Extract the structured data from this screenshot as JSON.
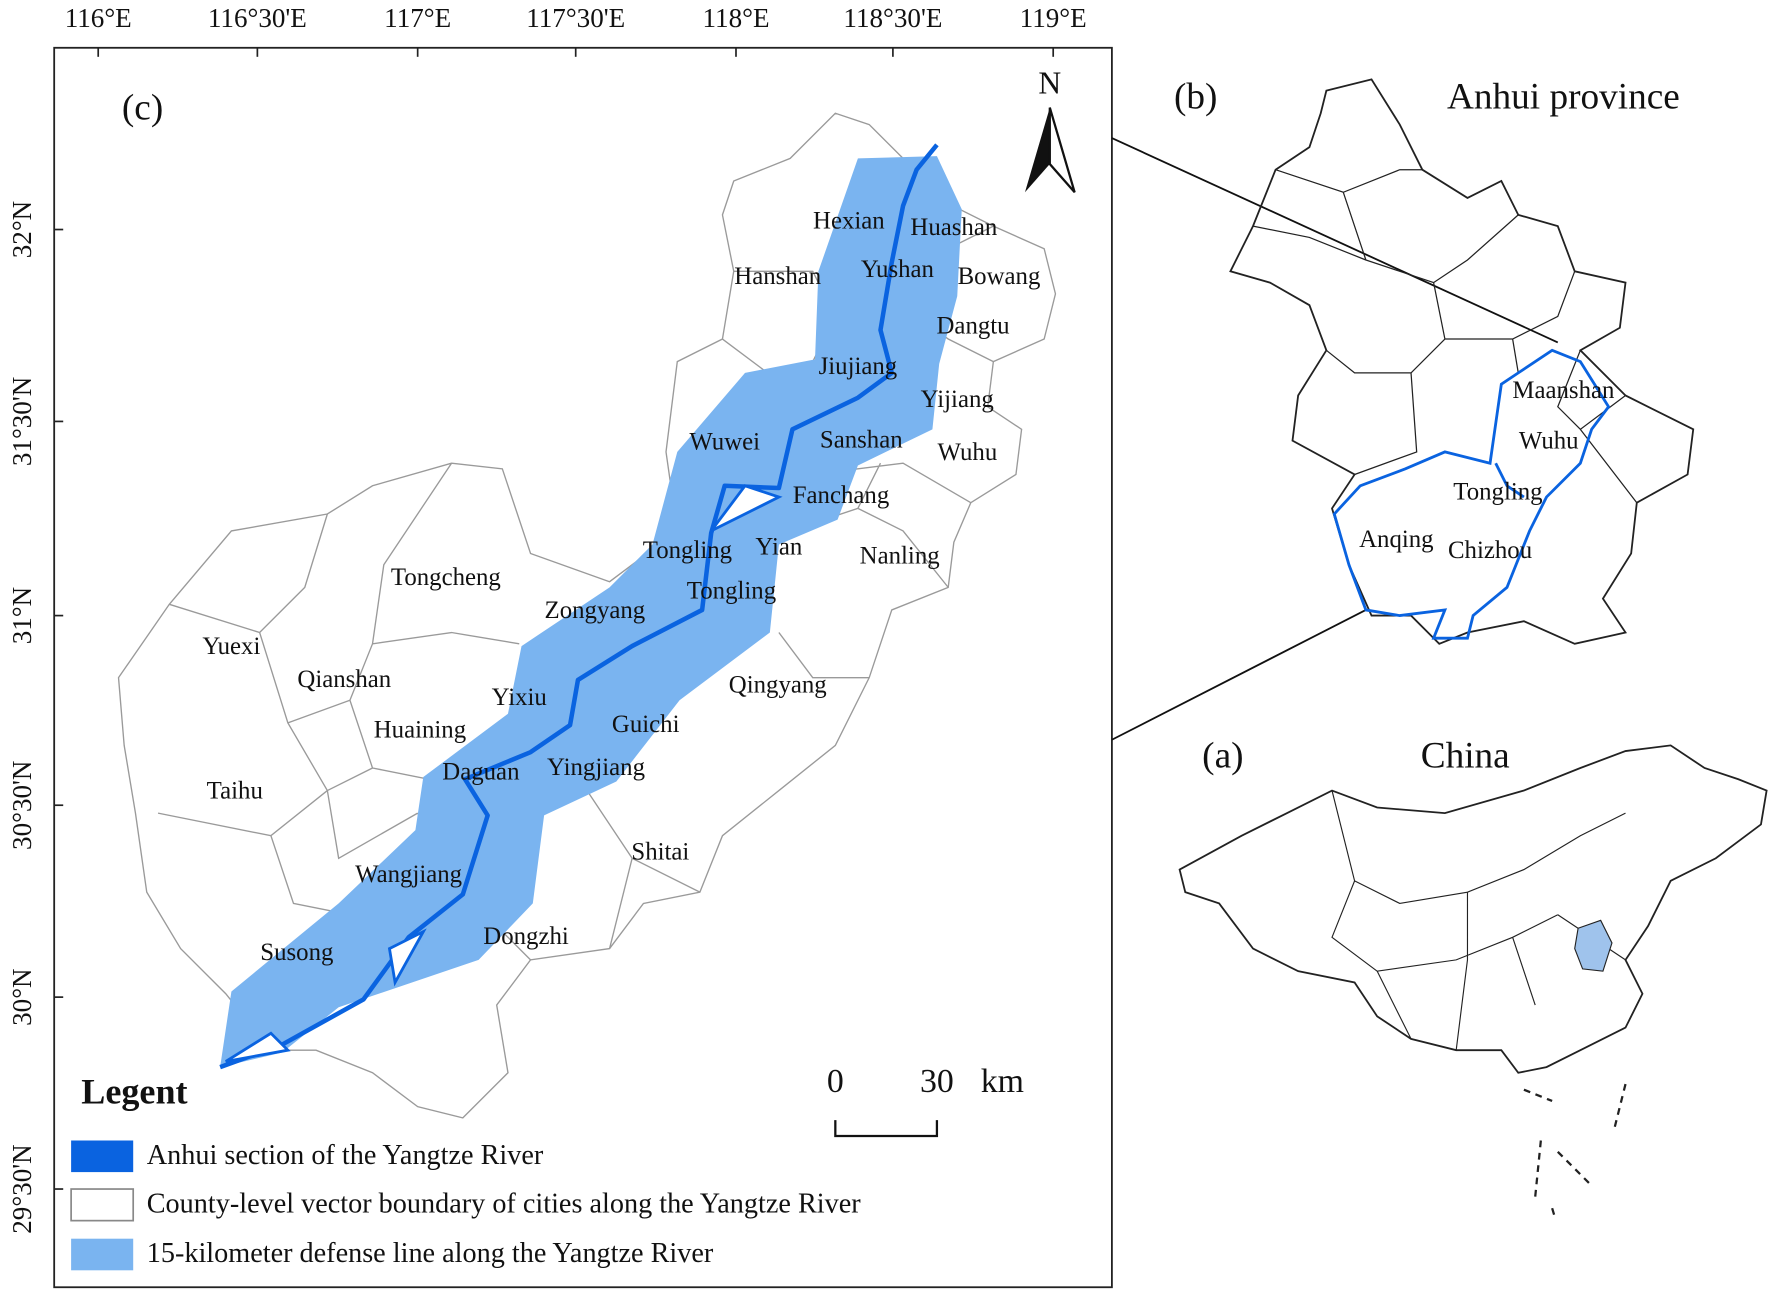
{
  "map_c": {
    "panel_label": "(c)",
    "north": "N",
    "lon_labels": [
      "116°E",
      "116°30'E",
      "117°E",
      "117°30'E",
      "118°E",
      "118°30'E",
      "119°E"
    ],
    "lat_labels": [
      "32°N",
      "31°30'N",
      "31°N",
      "30°30'N",
      "30°N",
      "29°30'N"
    ],
    "places": [
      "Hexian",
      "Huashan",
      "Yushan",
      "Bowang",
      "Hanshan",
      "Dangtu",
      "Jiujiang",
      "Yijiang",
      "Wuwei",
      "Sanshan",
      "Wuhu",
      "Fanchang",
      "Tongling",
      "Yian",
      "Nanling",
      "Tongcheng",
      "Tongling",
      "Zongyang",
      "Yuexi",
      "Qianshan",
      "Qingyang",
      "Yixiu",
      "Guichi",
      "Huaining",
      "Daguan",
      "Yingjiang",
      "Taihu",
      "Shitai",
      "Wangjiang",
      "Dongzhi",
      "Susong"
    ],
    "legend": {
      "title": "Legent",
      "items": [
        "Anhui section of the Yangtze River",
        "County-level vector boundary of cities along the Yangtze River",
        "15-kilometer defense line along the Yangtze River"
      ]
    },
    "scale_bar": {
      "start": "0",
      "end": "30",
      "unit": "km"
    }
  },
  "map_b": {
    "panel_label": "(b)",
    "title": "Anhui province",
    "places": [
      "Maanshan",
      "Wuhu",
      "Tongling",
      "Anqing",
      "Chizhou"
    ]
  },
  "map_a": {
    "panel_label": "(a)",
    "title": "China"
  }
}
